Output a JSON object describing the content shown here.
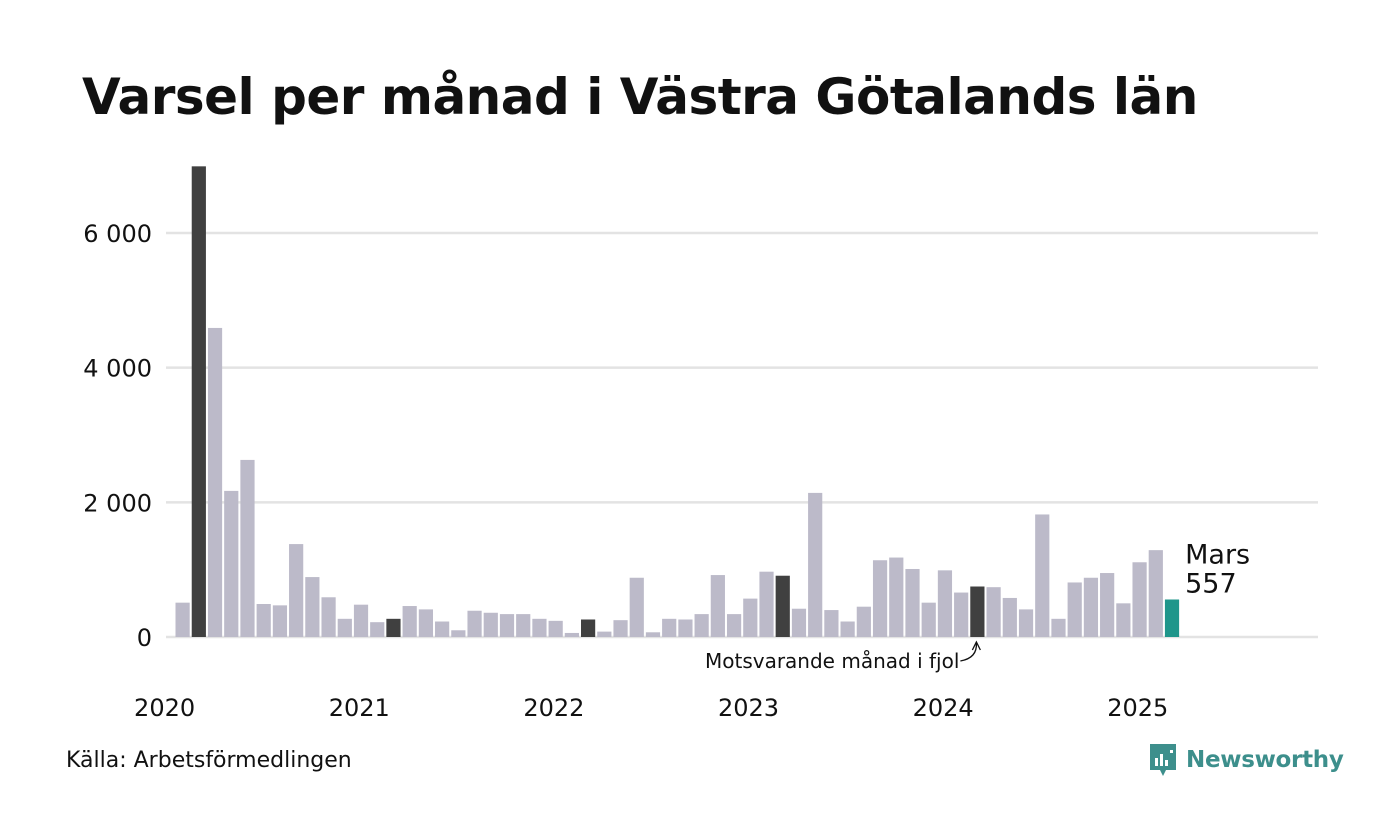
{
  "title": "Varsel per månad i Västra Götalands län",
  "source": "Källa: Arbetsförmedlingen",
  "brand": {
    "name": "Newsworthy",
    "color": "#3d8f8c"
  },
  "chart_data": {
    "type": "bar",
    "title": "Varsel per månad i Västra Götalands län",
    "xlabel": "",
    "ylabel": "",
    "ylim": [
      0,
      7000
    ],
    "yticks": [
      0,
      2000,
      4000,
      6000
    ],
    "ytick_labels": [
      "0",
      "2 000",
      "4 000",
      "6 000"
    ],
    "grid": true,
    "x_start": "2020-01",
    "xtick_labels": [
      "2020",
      "2021",
      "2022",
      "2023",
      "2024",
      "2025"
    ],
    "colors": {
      "default": "#bcbac9",
      "same_month": "#404040",
      "current": "#1f968b",
      "grid": "#e3e3e3"
    },
    "values": [
      510,
      6990,
      4590,
      2170,
      2630,
      490,
      470,
      1380,
      890,
      590,
      270,
      480,
      220,
      270,
      460,
      410,
      230,
      100,
      390,
      360,
      340,
      340,
      270,
      240,
      60,
      260,
      80,
      250,
      880,
      70,
      270,
      260,
      340,
      920,
      340,
      570,
      970,
      910,
      420,
      2140,
      400,
      230,
      450,
      1140,
      1180,
      1010,
      510,
      990,
      660,
      750,
      740,
      580,
      410,
      1820,
      270,
      810,
      880,
      950,
      500,
      1110,
      1290,
      557
    ],
    "highlight_same_month": [
      1,
      13,
      25,
      37,
      49
    ],
    "current_index": 61,
    "current_label": "Mars",
    "current_value_label": "557",
    "annotation": "Motsvarande månad i fjol"
  }
}
